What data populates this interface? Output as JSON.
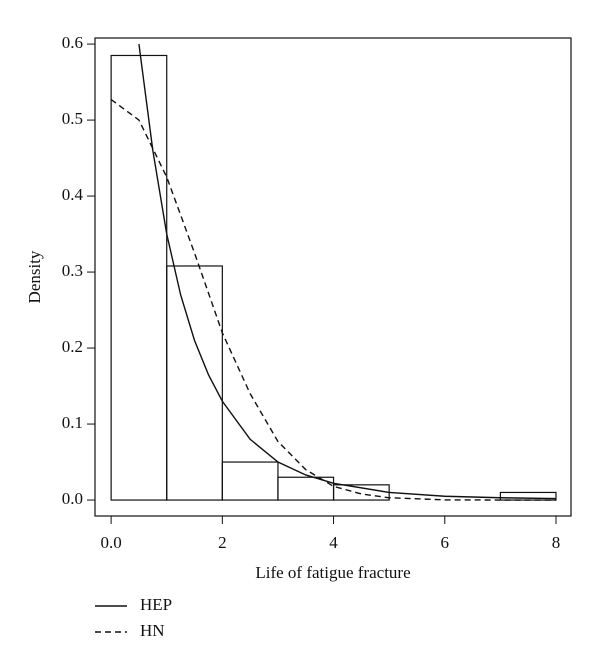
{
  "chart_data": {
    "type": "histogram",
    "x_label": "Life of fatigue fracture",
    "y_label": "Density",
    "bins": [
      0,
      1,
      2,
      3,
      4,
      5,
      6,
      7,
      8
    ],
    "counts": [
      0.585,
      0.308,
      0.05,
      0.03,
      0.02,
      0,
      0,
      0.01
    ],
    "xlim": [
      -0.29,
      8.27
    ],
    "ylim": [
      -0.021,
      0.608
    ],
    "xticks": [
      {
        "value": 0,
        "label": "0.0"
      },
      2,
      4,
      6,
      8
    ],
    "yticks": [
      {
        "value": 0,
        "label": "0.0"
      },
      0.1,
      0.2,
      0.3,
      0.4,
      0.5,
      0.6
    ],
    "series": [
      {
        "name": "HEP",
        "style": "solid",
        "x": [
          0.5,
          0.75,
          1,
          1.25,
          1.5,
          1.75,
          2,
          2.5,
          3,
          3.5,
          4,
          5,
          6,
          7,
          8
        ],
        "values": [
          0.6,
          0.46,
          0.35,
          0.27,
          0.21,
          0.165,
          0.13,
          0.08,
          0.05,
          0.033,
          0.022,
          0.01,
          0.005,
          0.003,
          0.002
        ]
      },
      {
        "name": "HN",
        "style": "dashed",
        "x": [
          0,
          0.5,
          1,
          1.5,
          2,
          2.5,
          3,
          3.5,
          4,
          4.5,
          5,
          6,
          7,
          8
        ],
        "values": [
          0.527,
          0.5,
          0.425,
          0.325,
          0.22,
          0.14,
          0.077,
          0.04,
          0.018,
          0.008,
          0.003,
          0.0002,
          0,
          0
        ]
      }
    ]
  }
}
